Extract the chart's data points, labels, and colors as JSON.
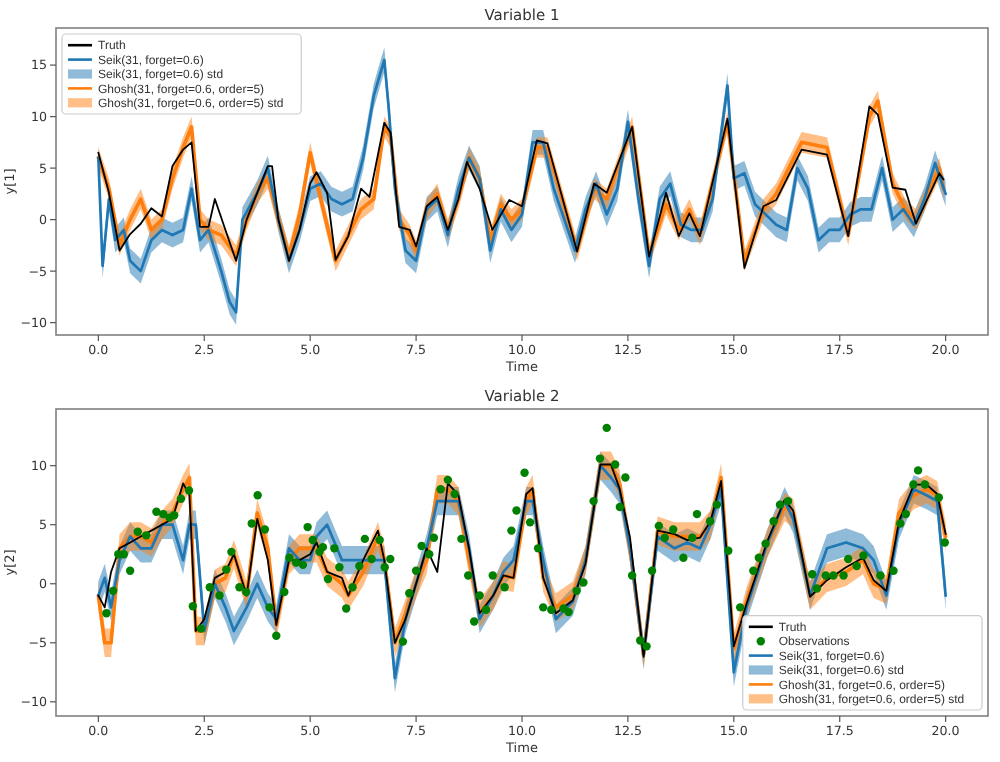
{
  "chart_data": [
    {
      "type": "line",
      "title": "Variable 1",
      "xlabel": "Time",
      "ylabel": "y[1]",
      "xlim": [
        -1,
        21
      ],
      "ylim": [
        -11.2,
        18.6
      ],
      "xticks": [
        {
          "value": 0,
          "label": "0.0"
        },
        {
          "value": 2.5,
          "label": "2.5"
        },
        {
          "value": 5,
          "label": "5.0"
        },
        {
          "value": 7.5,
          "label": "7.5"
        },
        {
          "value": 10,
          "label": "10.0"
        },
        {
          "value": 12.5,
          "label": "12.5"
        },
        {
          "value": 15,
          "label": "15.0"
        },
        {
          "value": 17.5,
          "label": "17.5"
        },
        {
          "value": 20,
          "label": "20.0"
        }
      ],
      "yticks": [
        -10,
        -5,
        0,
        5,
        10,
        15
      ],
      "legend": "top left",
      "annotations": [
        "Seik(31, forget=0.6) std",
        "Ghosh(31, forget=0.6, order=5) std"
      ],
      "series": [
        {
          "name": "Truth",
          "color": "#000000",
          "x": [
            0,
            0.25,
            0.5,
            0.75,
            1,
            1.25,
            1.5,
            1.75,
            2,
            2.2,
            2.4,
            2.6,
            2.75,
            3,
            3.25,
            3.5,
            3.75,
            4,
            4.1,
            4.25,
            4.5,
            4.75,
            5,
            5.15,
            5.4,
            5.6,
            5.9,
            6.2,
            6.4,
            6.75,
            6.9,
            7.1,
            7.35,
            7.5,
            7.75,
            8,
            8.25,
            8.5,
            8.7,
            9,
            9.3,
            9.7,
            10,
            10.35,
            10.6,
            11.3,
            11.7,
            12,
            12.6,
            13,
            13.4,
            13.7,
            13.95,
            14.2,
            14.85,
            15.25,
            15.7,
            16,
            16.6,
            17.2,
            17.7,
            18.2,
            18.4,
            18.75,
            19.05,
            19.3,
            19.85,
            19.95
          ],
          "values": [
            6.5,
            2.6,
            -3,
            -1.4,
            -0.4,
            1.1,
            0.3,
            5.2,
            6.8,
            7.5,
            -0.7,
            -0.7,
            2,
            -1,
            -4,
            0,
            2.6,
            5.2,
            5.2,
            0,
            -4,
            -1,
            3.5,
            4.6,
            2.6,
            -3.9,
            -1.6,
            3,
            2.2,
            9.4,
            8.4,
            -0.7,
            -1,
            -2.6,
            1.3,
            2.2,
            -1,
            2,
            5.6,
            3,
            -1,
            1.9,
            1.3,
            7.7,
            7.4,
            -3.1,
            3.5,
            2.6,
            9,
            -3.6,
            2.6,
            -1.6,
            0.6,
            -1.6,
            9.8,
            -4.7,
            1.3,
            1.9,
            6.8,
            6.3,
            -1.6,
            11,
            10.2,
            3.1,
            2.9,
            -0.4,
            4.5,
            3.9
          ]
        },
        {
          "name": "Seik(31, forget=0.6)",
          "color": "#1f77b4",
          "x": [
            0,
            0.1,
            0.25,
            0.4,
            0.6,
            0.75,
            1,
            1.25,
            1.5,
            1.75,
            2,
            2.2,
            2.4,
            2.6,
            2.9,
            3.1,
            3.25,
            3.4,
            3.75,
            4,
            4.25,
            4.5,
            4.75,
            5,
            5.25,
            5.5,
            5.75,
            6,
            6.25,
            6.5,
            6.75,
            6.85,
            7,
            7.25,
            7.5,
            7.75,
            8,
            8.25,
            8.5,
            8.75,
            9,
            9.25,
            9.5,
            9.75,
            10,
            10.25,
            10.5,
            10.75,
            11,
            11.25,
            11.5,
            11.75,
            12,
            12.25,
            12.5,
            12.75,
            13,
            13.25,
            13.5,
            13.75,
            14,
            14.25,
            14.5,
            14.85,
            15,
            15.25,
            15.5,
            16,
            16.25,
            16.5,
            16.75,
            17,
            17.25,
            17.5,
            17.75,
            18,
            18.25,
            18.5,
            18.75,
            19,
            19.25,
            19.5,
            19.75,
            20
          ],
          "values": [
            6,
            -4.5,
            2,
            -2,
            -1,
            -4,
            -5,
            -2,
            -1,
            -1.5,
            -1,
            3,
            -2,
            -1,
            -5,
            -8,
            -9,
            0,
            2.6,
            5,
            0,
            -4,
            -1,
            3,
            3.5,
            2,
            1.5,
            2,
            6,
            12,
            15.5,
            11,
            3,
            -3,
            -4,
            1,
            2,
            -1.5,
            3,
            6,
            4,
            -3,
            1,
            -1,
            0.5,
            7.5,
            7.5,
            3,
            0,
            -3,
            1,
            3.5,
            0.5,
            3,
            9.5,
            2,
            -4.5,
            2,
            3.5,
            -0.5,
            -1,
            -1,
            2,
            13,
            4,
            4.5,
            1.5,
            -0.5,
            -1,
            5,
            3,
            -2,
            -1,
            -1,
            0.5,
            1,
            1,
            5,
            0,
            1,
            -0.5,
            2,
            5.5,
            2.5
          ],
          "lower": [
            4.8,
            -5.7,
            0.8,
            -3.2,
            -2.2,
            -5.2,
            -6.2,
            -3.2,
            -2.2,
            -2.7,
            -2.2,
            1.8,
            -3.2,
            -2.2,
            -6.2,
            -9.2,
            -10.2,
            -1.2,
            1.4,
            3.8,
            -1.2,
            -5.2,
            -2.2,
            1.8,
            2.3,
            0.8,
            0.3,
            0.8,
            4.8,
            10.8,
            14.3,
            9.8,
            1.8,
            -4.2,
            -5.2,
            -0.2,
            0.8,
            -2.7,
            1.8,
            4.8,
            2.8,
            -4.2,
            -0.2,
            -2.2,
            -0.7,
            6.3,
            6.3,
            1.8,
            -1.2,
            -4.2,
            -0.2,
            2.3,
            -0.7,
            1.8,
            8.3,
            0.8,
            -5.7,
            0.8,
            2.3,
            -1.7,
            -2.2,
            -2.2,
            0.8,
            11.8,
            2.8,
            3.3,
            0.3,
            -1.7,
            -2.2,
            3.8,
            1.8,
            -3.2,
            -2.2,
            -2.2,
            -0.7,
            -0.2,
            -0.2,
            3.8,
            -1.2,
            -0.2,
            -1.7,
            0.8,
            4.3,
            1.3
          ],
          "upper": [
            7.2,
            -3.3,
            3.2,
            -0.8,
            0.2,
            -2.8,
            -3.8,
            -0.8,
            0.2,
            -0.3,
            0.2,
            4.2,
            -0.8,
            0.2,
            -3.8,
            -6.8,
            -7.8,
            1.2,
            3.8,
            6.2,
            1.2,
            -2.8,
            0.2,
            4.2,
            4.7,
            3.2,
            2.7,
            3.2,
            7.2,
            13.2,
            16.7,
            12.2,
            4.2,
            -1.8,
            -2.8,
            2.2,
            3.2,
            -0.3,
            4.2,
            7.2,
            5.2,
            -1.8,
            2.2,
            0.2,
            1.7,
            8.7,
            8.7,
            4.2,
            1.2,
            -1.8,
            2.2,
            4.7,
            1.7,
            4.2,
            10.7,
            3.2,
            -3.3,
            3.2,
            4.7,
            0.7,
            0.2,
            0.2,
            3.2,
            14.2,
            5.2,
            5.7,
            2.7,
            0.7,
            0.2,
            6.2,
            4.2,
            -0.8,
            0.2,
            0.2,
            1.7,
            2.2,
            2.2,
            6.2,
            1.2,
            2.2,
            0.7,
            3.2,
            6.7,
            3.7
          ]
        },
        {
          "name": "Ghosh(31, forget=0.6, order=5)",
          "color": "#ff7f0e",
          "x": [
            0,
            0.25,
            0.5,
            0.75,
            1,
            1.25,
            1.5,
            1.75,
            2,
            2.2,
            2.4,
            2.6,
            2.9,
            3.25,
            3.5,
            3.75,
            4,
            4.25,
            4.5,
            4.75,
            5,
            5.25,
            5.6,
            5.9,
            6.2,
            6.5,
            6.75,
            6.9,
            7.1,
            7.35,
            7.5,
            7.75,
            8,
            8.25,
            8.5,
            8.75,
            9,
            9.25,
            9.5,
            9.75,
            10,
            10.35,
            10.6,
            11.3,
            11.7,
            12,
            12.6,
            13,
            13.4,
            13.7,
            13.95,
            14.2,
            14.85,
            15.25,
            15.7,
            16,
            16.6,
            17.2,
            17.7,
            18.2,
            18.4,
            18.75,
            19.05,
            19.3,
            19.85,
            19.95
          ],
          "values": [
            6,
            3,
            -2.5,
            0,
            2,
            -1,
            0,
            4,
            7,
            9,
            0,
            -1,
            -1.5,
            -3.5,
            0,
            2.6,
            4,
            0,
            -3.5,
            0.5,
            6.5,
            2,
            -4,
            -1.5,
            1,
            2,
            9,
            8,
            0,
            -1.5,
            -3,
            1,
            2.5,
            -1,
            2,
            6,
            4,
            -2,
            1.5,
            0,
            1,
            7,
            7,
            -3,
            3,
            2,
            9,
            -3.5,
            1.5,
            -1,
            1,
            -1.5,
            9.5,
            -4,
            1,
            2.5,
            7.5,
            7,
            -1.5,
            10,
            11.5,
            3.5,
            1,
            0,
            5,
            3
          ],
          "lower": [
            5,
            2,
            -3.5,
            -1,
            1,
            -2,
            -1,
            3,
            6,
            8,
            -1,
            -2,
            -2.5,
            -4.5,
            -1,
            1.6,
            3,
            -1,
            -4.5,
            -0.5,
            5.5,
            1,
            -5,
            -2.5,
            0,
            1,
            8,
            7,
            -1,
            -2.5,
            -4,
            0,
            1.5,
            -2,
            1,
            5,
            3,
            -3,
            0.5,
            -1,
            0,
            6,
            6,
            -4,
            2,
            1,
            8,
            -4.5,
            0.5,
            -2,
            0,
            -2.5,
            8.5,
            -5,
            0,
            1.5,
            6.5,
            6,
            -2.5,
            9,
            10.5,
            2.5,
            0,
            -1,
            4,
            2
          ],
          "upper": [
            7,
            4,
            -1.5,
            1,
            3,
            0,
            1,
            5,
            8,
            10,
            1,
            0,
            -0.5,
            -2.5,
            1,
            3.6,
            5,
            1,
            -2.5,
            1.5,
            7.5,
            3,
            -3,
            -0.5,
            2,
            3,
            10,
            9,
            1,
            -0.5,
            -2,
            2,
            3.5,
            0,
            3,
            7,
            5,
            -1,
            2.5,
            1,
            2,
            8,
            8,
            -2,
            4,
            3,
            10,
            -2.5,
            2.5,
            0,
            2,
            -0.5,
            10.5,
            -3,
            2,
            3.5,
            8.5,
            8,
            -0.5,
            11,
            12.5,
            4.5,
            2,
            1,
            6,
            4
          ]
        }
      ]
    },
    {
      "type": "line",
      "title": "Variable 2",
      "xlabel": "Time",
      "ylabel": "y[2]",
      "xlim": [
        -1,
        21
      ],
      "ylim": [
        -11.2,
        14.8
      ],
      "xticks": [
        {
          "value": 0,
          "label": "0.0"
        },
        {
          "value": 2.5,
          "label": "2.5"
        },
        {
          "value": 5,
          "label": "5.0"
        },
        {
          "value": 7.5,
          "label": "7.5"
        },
        {
          "value": 10,
          "label": "10.0"
        },
        {
          "value": 12.5,
          "label": "12.5"
        },
        {
          "value": 15,
          "label": "15.0"
        },
        {
          "value": 17.5,
          "label": "17.5"
        },
        {
          "value": 20,
          "label": "20.0"
        }
      ],
      "yticks": [
        -10,
        -5,
        0,
        5,
        10
      ],
      "legend": "bottom right",
      "annotations": [
        "Seik(31, forget=0.6) std",
        "Ghosh(31, forget=0.6, order=5) std"
      ],
      "x": [
        0,
        0.15,
        0.3,
        0.5,
        0.75,
        1,
        1.25,
        1.5,
        1.75,
        2,
        2.15,
        2.3,
        2.5,
        2.75,
        3,
        3.2,
        3.5,
        3.75,
        4,
        4.2,
        4.5,
        4.75,
        5,
        5.15,
        5.4,
        5.75,
        5.9,
        6.25,
        6.6,
        6.75,
        7,
        7.25,
        7.5,
        7.75,
        8,
        8.25,
        8.5,
        8.75,
        9,
        9.32,
        9.56,
        9.8,
        10.1,
        10.25,
        10.5,
        10.8,
        11.2,
        11.5,
        11.85,
        12.1,
        12.3,
        12.55,
        12.87,
        13.2,
        13.6,
        13.9,
        14.2,
        14.45,
        14.7,
        15,
        15.3,
        15.8,
        16.2,
        16.4,
        16.8,
        17.2,
        17.65,
        18.05,
        18.3,
        18.6,
        18.9,
        19.25,
        19.55,
        19.8,
        20
      ],
      "series": [
        {
          "name": "Truth",
          "color": "#000000",
          "values": [
            -1,
            -2,
            1,
            3,
            3.5,
            4,
            4.5,
            5,
            5.5,
            8.5,
            7.5,
            -4,
            -3,
            0.5,
            1,
            2.5,
            -1,
            5.5,
            2,
            -3.5,
            2,
            2,
            2.5,
            3.5,
            1,
            0.5,
            -1,
            2,
            4.5,
            2,
            -5,
            -3,
            0,
            3,
            1,
            8.5,
            7.5,
            3,
            -2.5,
            -1,
            0.7,
            0.5,
            7.6,
            8.1,
            0.5,
            -2.5,
            -1.4,
            1.7,
            10.1,
            10.1,
            8.1,
            3.9,
            -6.2,
            4.5,
            4.2,
            3.7,
            3.9,
            5.3,
            8.7,
            -5.3,
            -1.7,
            3.7,
            7.1,
            6.2,
            -1.1,
            0.3,
            1.4,
            2.2,
            0.3,
            -0.6,
            5.3,
            8.4,
            8.4,
            7.6,
            4.2
          ]
        },
        {
          "type": "scatter",
          "name": "Observations",
          "color": "#008000",
          "marker": "circle",
          "x": [
            0.19,
            0.35,
            0.47,
            0.6,
            0.75,
            0.93,
            1.13,
            1.37,
            1.53,
            1.68,
            1.79,
            1.95,
            2.14,
            2.23,
            2.42,
            2.63,
            2.86,
            3.02,
            3.14,
            3.33,
            3.49,
            3.62,
            3.76,
            3.93,
            4.04,
            4.2,
            4.39,
            4.51,
            4.67,
            4.83,
            4.94,
            5.06,
            5.22,
            5.3,
            5.42,
            5.57,
            5.69,
            5.85,
            6,
            6.16,
            6.29,
            6.45,
            6.64,
            6.76,
            6.89,
            7.19,
            7.34,
            7.5,
            7.63,
            7.81,
            7.92,
            8.08,
            8.25,
            8.41,
            8.57,
            8.73,
            8.87,
            9,
            9.15,
            9.31,
            9.59,
            9.75,
            9.87,
            10.06,
            10.19,
            10.38,
            10.5,
            10.69,
            10.98,
            11.1,
            11.29,
            11.45,
            11.69,
            11.84,
            12,
            12.2,
            12.31,
            12.44,
            12.6,
            12.79,
            12.94,
            13.07,
            13.23,
            13.37,
            13.57,
            13.81,
            14.02,
            14.13,
            14.44,
            14.6,
            14.87,
            15.15,
            15.46,
            15.59,
            15.75,
            15.94,
            16.09,
            16.28,
            16.85,
            16.96,
            17.17,
            17.35,
            17.59,
            17.7,
            17.9,
            18.06,
            18.46,
            18.77,
            18.93,
            19.06,
            19.24,
            19.35,
            19.51,
            19.84,
            19.98
          ],
          "values": [
            -2.5,
            -0.6,
            2.5,
            2.5,
            1.1,
            4.4,
            4.1,
            6.1,
            5.9,
            5.6,
            5.8,
            7.2,
            7.9,
            -1.9,
            -3.8,
            -0.3,
            -1,
            1.2,
            2.7,
            -0.3,
            -0.7,
            5.1,
            7.5,
            4.6,
            -2,
            -4.4,
            -0.7,
            2.2,
            1.8,
            1.6,
            4.8,
            3.7,
            2.7,
            3.1,
            0.4,
            3,
            1.4,
            -2.1,
            -0.3,
            1.5,
            3.8,
            2.1,
            3.7,
            1.4,
            2.1,
            -4.9,
            -0.8,
            1.1,
            3.2,
            2.5,
            3.9,
            8,
            8.8,
            7.6,
            3.8,
            0.7,
            -3.2,
            -1,
            -2.2,
            0.7,
            -0.3,
            4.5,
            6.2,
            9.4,
            5.2,
            3,
            -2,
            -2.2,
            -2.1,
            -2.4,
            -0.6,
            0.1,
            7,
            10.6,
            13.2,
            10.1,
            6.5,
            9,
            0.7,
            -4.8,
            -5.3,
            1.1,
            4.9,
            3.9,
            4.6,
            2.2,
            3.9,
            5.9,
            5.3,
            6.7,
            2.8,
            -2,
            1.1,
            2.2,
            3.4,
            5.3,
            6.7,
            7,
            0.8,
            -0.4,
            0.7,
            0.7,
            0.7,
            2.1,
            1.5,
            2.4,
            0.7,
            1.1,
            5.1,
            5.9,
            8.4,
            9.6,
            8.4,
            7.3,
            3.5
          ]
        },
        {
          "name": "Seik(31, forget=0.6)",
          "color": "#1f77b4",
          "values": [
            -1,
            0.5,
            -2,
            2,
            4,
            3,
            3,
            5,
            5,
            2,
            5,
            5,
            -4,
            0,
            -2,
            -4,
            -2,
            0,
            -2,
            -3,
            3,
            2,
            2,
            4,
            5,
            2,
            2,
            2,
            2,
            2,
            -8,
            -3,
            0,
            3,
            7,
            7,
            7,
            3,
            -3,
            -1,
            1,
            2,
            7,
            7,
            2,
            -3,
            -1.5,
            2,
            10,
            9,
            8,
            3,
            -6,
            4,
            3,
            3.5,
            3,
            5,
            8,
            -7.5,
            -2,
            3.5,
            7,
            5.5,
            -1,
            3,
            3.5,
            3,
            2,
            -1,
            5,
            8,
            7.5,
            7,
            -1
          ],
          "lower": [
            -2.2,
            -0.7,
            -3.2,
            0.8,
            2.8,
            1.8,
            1.8,
            3.8,
            3.8,
            0.8,
            3.8,
            3.8,
            -5.2,
            -1.2,
            -3.2,
            -5.2,
            -3.2,
            -1.2,
            -3.2,
            -4.2,
            1.8,
            0.8,
            0.8,
            2.8,
            3.8,
            0.8,
            0.8,
            0.8,
            0.8,
            0.8,
            -9.2,
            -4.2,
            -1.2,
            1.8,
            5.8,
            5.8,
            5.8,
            1.8,
            -4.2,
            -2.2,
            -0.2,
            0.8,
            5.8,
            5.8,
            0.8,
            -4.2,
            -2.7,
            0.8,
            8.8,
            7.8,
            6.8,
            1.8,
            -7.2,
            2.8,
            1.8,
            2.3,
            1.8,
            3.8,
            6.8,
            -8.7,
            -3.2,
            2.3,
            5.8,
            4.3,
            -2.2,
            1.8,
            2.3,
            1.8,
            0.8,
            -2.2,
            3.8,
            6.8,
            6.3,
            5.8,
            -2.2
          ],
          "upper": [
            0.2,
            1.7,
            -0.8,
            3.2,
            5.2,
            4.2,
            4.2,
            6.2,
            6.2,
            3.2,
            6.2,
            6.2,
            -2.8,
            1.2,
            -0.8,
            -2.8,
            -0.8,
            1.2,
            -0.8,
            -1.8,
            4.2,
            3.2,
            3.2,
            5.2,
            6.2,
            3.2,
            3.2,
            3.2,
            3.2,
            3.2,
            -6.8,
            -1.8,
            1.2,
            4.2,
            8.2,
            8.2,
            8.2,
            4.2,
            -1.8,
            0.2,
            2.2,
            3.2,
            8.2,
            8.2,
            3.2,
            -1.8,
            -0.3,
            3.2,
            11.2,
            10.2,
            9.2,
            4.2,
            -4.8,
            5.2,
            4.2,
            4.7,
            4.2,
            6.2,
            9.2,
            -6.3,
            -0.8,
            4.7,
            8.2,
            6.7,
            0.2,
            4.2,
            4.7,
            4.2,
            3.2,
            0.2,
            6.2,
            9.2,
            8.7,
            8.2,
            0.2
          ]
        },
        {
          "name": "Ghosh(31, forget=0.6, order=5)",
          "color": "#ff7f0e",
          "values": [
            -1,
            -5,
            -5,
            3,
            4,
            4,
            3.5,
            5,
            6,
            8,
            9,
            -4,
            -4,
            0,
            0.5,
            2.5,
            -1,
            6,
            3,
            -3.5,
            2,
            3,
            3,
            3,
            1,
            0,
            -1,
            1,
            4,
            2,
            -5,
            -2.5,
            0,
            2,
            8,
            8,
            7,
            2,
            -2.5,
            -1,
            0.7,
            0.5,
            7,
            8,
            0.5,
            -2,
            -1,
            2,
            10,
            10,
            8.5,
            3,
            -6,
            4.5,
            4,
            4,
            4,
            5,
            9,
            -5.5,
            -1.5,
            3.5,
            6.5,
            6,
            -1,
            0.5,
            1,
            2,
            0,
            -0.5,
            6,
            7.5,
            8,
            7.5,
            4
          ],
          "lower": [
            -2.2,
            -6.2,
            -6.2,
            1.8,
            2.8,
            2.8,
            2.3,
            3.8,
            4.8,
            6.8,
            7.8,
            -5.2,
            -5.2,
            -1.2,
            -0.7,
            1.3,
            -2.2,
            4.8,
            1.8,
            -4.7,
            0.8,
            1.8,
            1.8,
            1.8,
            -0.2,
            -1.2,
            -2.2,
            -0.2,
            2.8,
            0.8,
            -6.2,
            -3.7,
            -1.2,
            0.8,
            6.8,
            6.8,
            5.8,
            0.8,
            -3.7,
            -2.2,
            -0.5,
            -0.7,
            5.8,
            6.8,
            -0.7,
            -3.2,
            -2.2,
            0.8,
            8.8,
            8.8,
            7.3,
            1.8,
            -7.2,
            3.3,
            2.8,
            2.8,
            2.8,
            3.8,
            7.8,
            -6.7,
            -2.7,
            2.3,
            5.3,
            4.8,
            -2.2,
            -0.7,
            -0.2,
            0.8,
            -1.2,
            -1.7,
            4.8,
            6.3,
            6.8,
            6.3,
            2.8
          ],
          "upper": [
            0.2,
            -3.8,
            -3.8,
            4.2,
            5.2,
            5.2,
            4.7,
            6.2,
            7.2,
            9.2,
            10.2,
            -2.8,
            -2.8,
            1.2,
            1.7,
            3.7,
            0.2,
            7.2,
            4.2,
            -2.3,
            3.2,
            4.2,
            4.2,
            4.2,
            2.2,
            1.2,
            0.2,
            2.2,
            5.2,
            3.2,
            -3.8,
            -1.3,
            1.2,
            3.2,
            9.2,
            9.2,
            8.2,
            3.2,
            -1.3,
            0.2,
            1.9,
            1.7,
            8.2,
            9.2,
            1.7,
            -0.8,
            0.2,
            3.2,
            11.2,
            11.2,
            9.7,
            4.2,
            -4.8,
            5.7,
            5.2,
            5.2,
            5.2,
            6.2,
            10.2,
            -4.3,
            -0.3,
            4.7,
            7.7,
            7.2,
            0.2,
            1.7,
            2.2,
            3.2,
            1.2,
            0.7,
            7.2,
            8.7,
            9.2,
            8.7,
            5.2
          ]
        }
      ]
    }
  ]
}
